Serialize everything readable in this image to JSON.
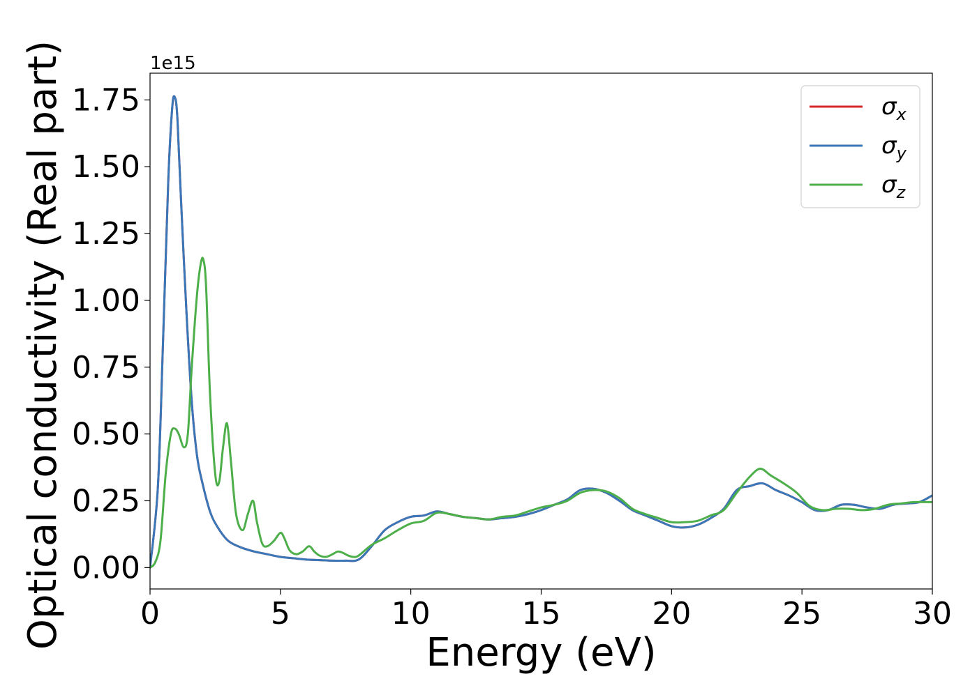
{
  "chart_data": {
    "type": "line",
    "xlabel": "Energy (eV)",
    "ylabel": "Optical conductivity (Real part)",
    "y_offset_text": "1e15",
    "xlim": [
      0,
      30
    ],
    "ylim": [
      -0.08,
      1.85
    ],
    "x_ticks": [
      0,
      5,
      10,
      15,
      20,
      25,
      30
    ],
    "x_tick_labels": [
      "0",
      "5",
      "10",
      "15",
      "20",
      "25",
      "30"
    ],
    "y_ticks": [
      0.0,
      0.25,
      0.5,
      0.75,
      1.0,
      1.25,
      1.5,
      1.75
    ],
    "y_tick_labels": [
      "0.00",
      "0.25",
      "0.50",
      "0.75",
      "1.00",
      "1.25",
      "1.50",
      "1.75"
    ],
    "grid": false,
    "legend_position": "top-right",
    "series": [
      {
        "name": "σ_x",
        "legend_symbol": "σ",
        "legend_sub": "x",
        "color": "#d62728",
        "x": [
          0,
          0.3,
          0.5,
          0.7,
          0.85,
          0.95,
          1.05,
          1.2,
          1.4,
          1.6,
          1.8,
          2.0,
          2.3,
          2.6,
          3.0,
          3.5,
          4.0,
          4.5,
          5.0,
          5.5,
          6.0,
          6.5,
          7.0,
          7.5,
          8.0,
          8.5,
          9.0,
          9.5,
          10.0,
          10.5,
          11.0,
          11.5,
          12.0,
          12.5,
          13.0,
          13.5,
          14.0,
          14.5,
          15.0,
          15.5,
          16.0,
          16.5,
          17.0,
          17.5,
          18.0,
          18.5,
          19.0,
          19.5,
          20.0,
          20.5,
          21.0,
          21.5,
          22.0,
          22.5,
          23.0,
          23.5,
          24.0,
          24.5,
          25.0,
          25.5,
          26.0,
          26.5,
          27.0,
          27.5,
          28.0,
          28.5,
          29.0,
          29.5,
          30.0
        ],
        "y": [
          0.0,
          0.3,
          0.85,
          1.45,
          1.72,
          1.76,
          1.68,
          1.35,
          0.95,
          0.62,
          0.42,
          0.32,
          0.21,
          0.15,
          0.1,
          0.075,
          0.06,
          0.05,
          0.04,
          0.035,
          0.03,
          0.028,
          0.026,
          0.026,
          0.03,
          0.08,
          0.14,
          0.17,
          0.19,
          0.195,
          0.21,
          0.2,
          0.19,
          0.185,
          0.18,
          0.185,
          0.19,
          0.2,
          0.215,
          0.235,
          0.255,
          0.29,
          0.295,
          0.28,
          0.25,
          0.215,
          0.195,
          0.175,
          0.155,
          0.15,
          0.16,
          0.185,
          0.22,
          0.29,
          0.305,
          0.315,
          0.29,
          0.27,
          0.245,
          0.215,
          0.215,
          0.235,
          0.235,
          0.225,
          0.22,
          0.235,
          0.24,
          0.245,
          0.27
        ]
      },
      {
        "name": "σ_y",
        "legend_symbol": "σ",
        "legend_sub": "y",
        "color": "#3a77b8",
        "x": [
          0,
          0.3,
          0.5,
          0.7,
          0.85,
          0.95,
          1.05,
          1.2,
          1.4,
          1.6,
          1.8,
          2.0,
          2.3,
          2.6,
          3.0,
          3.5,
          4.0,
          4.5,
          5.0,
          5.5,
          6.0,
          6.5,
          7.0,
          7.5,
          8.0,
          8.5,
          9.0,
          9.5,
          10.0,
          10.5,
          11.0,
          11.5,
          12.0,
          12.5,
          13.0,
          13.5,
          14.0,
          14.5,
          15.0,
          15.5,
          16.0,
          16.5,
          17.0,
          17.5,
          18.0,
          18.5,
          19.0,
          19.5,
          20.0,
          20.5,
          21.0,
          21.5,
          22.0,
          22.5,
          23.0,
          23.5,
          24.0,
          24.5,
          25.0,
          25.5,
          26.0,
          26.5,
          27.0,
          27.5,
          28.0,
          28.5,
          29.0,
          29.5,
          30.0
        ],
        "y": [
          0.0,
          0.3,
          0.85,
          1.45,
          1.72,
          1.76,
          1.68,
          1.35,
          0.95,
          0.62,
          0.42,
          0.32,
          0.21,
          0.15,
          0.1,
          0.075,
          0.06,
          0.05,
          0.04,
          0.035,
          0.03,
          0.028,
          0.026,
          0.026,
          0.03,
          0.08,
          0.14,
          0.17,
          0.19,
          0.195,
          0.21,
          0.2,
          0.19,
          0.185,
          0.18,
          0.185,
          0.19,
          0.2,
          0.215,
          0.235,
          0.255,
          0.29,
          0.295,
          0.28,
          0.25,
          0.215,
          0.195,
          0.175,
          0.155,
          0.15,
          0.16,
          0.185,
          0.22,
          0.29,
          0.305,
          0.315,
          0.29,
          0.27,
          0.245,
          0.215,
          0.215,
          0.235,
          0.235,
          0.225,
          0.22,
          0.235,
          0.24,
          0.245,
          0.27
        ]
      },
      {
        "name": "σ_z",
        "legend_symbol": "σ",
        "legend_sub": "z",
        "color": "#4daf4a",
        "x": [
          0,
          0.2,
          0.4,
          0.6,
          0.8,
          0.95,
          1.1,
          1.3,
          1.45,
          1.6,
          1.8,
          1.95,
          2.05,
          2.15,
          2.3,
          2.5,
          2.65,
          2.8,
          2.95,
          3.1,
          3.3,
          3.55,
          3.75,
          3.95,
          4.1,
          4.3,
          4.5,
          4.75,
          5.0,
          5.15,
          5.35,
          5.6,
          5.85,
          6.1,
          6.3,
          6.5,
          6.75,
          7.0,
          7.2,
          7.4,
          7.6,
          7.8,
          8.0,
          8.5,
          9.0,
          9.5,
          10.0,
          10.5,
          11.0,
          11.5,
          12.0,
          12.5,
          13.0,
          13.5,
          14.0,
          14.5,
          15.0,
          15.5,
          16.0,
          16.5,
          17.0,
          17.5,
          18.0,
          18.5,
          19.0,
          19.5,
          20.0,
          20.5,
          21.0,
          21.5,
          22.0,
          22.5,
          23.0,
          23.4,
          23.8,
          24.3,
          24.8,
          25.3,
          25.8,
          26.3,
          26.8,
          27.3,
          27.8,
          28.3,
          28.8,
          29.3,
          29.8,
          30.0
        ],
        "y": [
          0.0,
          0.02,
          0.1,
          0.35,
          0.5,
          0.52,
          0.5,
          0.45,
          0.5,
          0.75,
          1.02,
          1.14,
          1.15,
          1.05,
          0.65,
          0.35,
          0.32,
          0.45,
          0.54,
          0.4,
          0.2,
          0.14,
          0.2,
          0.25,
          0.17,
          0.09,
          0.08,
          0.1,
          0.13,
          0.11,
          0.065,
          0.05,
          0.06,
          0.08,
          0.06,
          0.045,
          0.04,
          0.05,
          0.06,
          0.055,
          0.045,
          0.04,
          0.045,
          0.085,
          0.11,
          0.14,
          0.165,
          0.175,
          0.205,
          0.2,
          0.19,
          0.185,
          0.18,
          0.19,
          0.195,
          0.21,
          0.225,
          0.235,
          0.25,
          0.28,
          0.29,
          0.285,
          0.26,
          0.22,
          0.2,
          0.185,
          0.17,
          0.17,
          0.175,
          0.195,
          0.215,
          0.28,
          0.34,
          0.37,
          0.345,
          0.315,
          0.28,
          0.23,
          0.215,
          0.22,
          0.22,
          0.215,
          0.22,
          0.235,
          0.24,
          0.245,
          0.245,
          0.245
        ]
      }
    ]
  }
}
